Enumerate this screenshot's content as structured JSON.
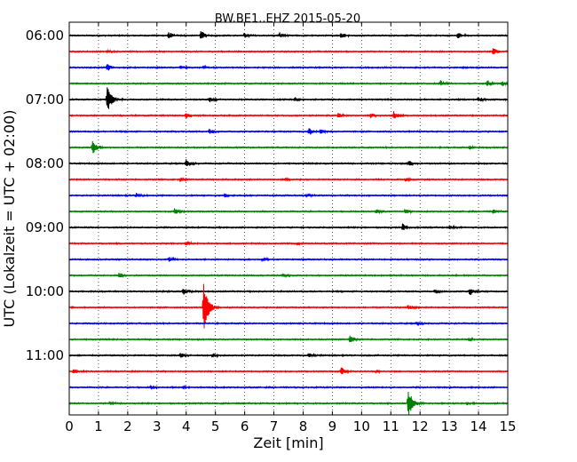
{
  "chart_data": {
    "type": "line",
    "title": "BW.BE1..EHZ 2015-05-20",
    "xlabel": "Zeit  [min]",
    "ylabel": "UTC (Lokalzeit = UTC + 02:00)",
    "xlim": [
      0,
      15
    ],
    "x_ticks": [
      "0",
      "1",
      "2",
      "3",
      "4",
      "5",
      "6",
      "7",
      "8",
      "9",
      "10",
      "11",
      "12",
      "13",
      "14",
      "15"
    ],
    "y_tick_labels": [
      "06:00",
      "07:00",
      "08:00",
      "09:00",
      "10:00",
      "11:00"
    ],
    "y_tick_trace_indices": [
      0,
      4,
      8,
      12,
      16,
      20
    ],
    "vertical_grid": "dotted",
    "trace_minutes": 15,
    "colors": [
      "#000000",
      "#ff0000",
      "#0000ff",
      "#008000"
    ],
    "traces": [
      {
        "start": "06:00",
        "color": "#000000",
        "events": [
          {
            "t": 3.4,
            "amp": 0.35
          },
          {
            "t": 4.5,
            "amp": 0.55
          },
          {
            "t": 6.0,
            "amp": 0.3
          },
          {
            "t": 7.2,
            "amp": 0.3
          },
          {
            "t": 9.3,
            "amp": 0.35
          },
          {
            "t": 13.3,
            "amp": 0.35
          }
        ]
      },
      {
        "start": "06:15",
        "color": "#ff0000",
        "events": [
          {
            "t": 1.3,
            "amp": 0.2
          },
          {
            "t": 14.5,
            "amp": 0.45
          }
        ]
      },
      {
        "start": "06:30",
        "color": "#0000ff",
        "events": [
          {
            "t": 1.3,
            "amp": 0.4
          },
          {
            "t": 3.8,
            "amp": 0.2
          },
          {
            "t": 4.6,
            "amp": 0.2
          }
        ]
      },
      {
        "start": "06:45",
        "color": "#008000",
        "events": [
          {
            "t": 12.7,
            "amp": 0.35
          },
          {
            "t": 14.3,
            "amp": 0.4
          },
          {
            "t": 14.8,
            "amp": 0.3
          }
        ]
      },
      {
        "start": "07:00",
        "color": "#000000",
        "events": [
          {
            "t": 1.3,
            "amp": 1.5
          },
          {
            "t": 4.8,
            "amp": 0.3
          },
          {
            "t": 7.7,
            "amp": 0.25
          },
          {
            "t": 14.0,
            "amp": 0.3
          }
        ]
      },
      {
        "start": "07:15",
        "color": "#ff0000",
        "events": [
          {
            "t": 4.0,
            "amp": 0.35
          },
          {
            "t": 9.2,
            "amp": 0.3
          },
          {
            "t": 10.3,
            "amp": 0.3
          },
          {
            "t": 11.1,
            "amp": 0.5
          }
        ]
      },
      {
        "start": "07:30",
        "color": "#0000ff",
        "events": [
          {
            "t": 4.8,
            "amp": 0.3
          },
          {
            "t": 8.2,
            "amp": 0.4
          },
          {
            "t": 8.6,
            "amp": 0.25
          }
        ]
      },
      {
        "start": "07:45",
        "color": "#008000",
        "events": [
          {
            "t": 0.8,
            "amp": 0.8
          },
          {
            "t": 13.7,
            "amp": 0.25
          }
        ]
      },
      {
        "start": "08:00",
        "color": "#000000",
        "events": [
          {
            "t": 4.0,
            "amp": 0.45
          },
          {
            "t": 11.6,
            "amp": 0.3
          }
        ]
      },
      {
        "start": "08:15",
        "color": "#ff0000",
        "events": [
          {
            "t": 3.8,
            "amp": 0.2
          },
          {
            "t": 11.5,
            "amp": 0.2
          },
          {
            "t": 7.4,
            "amp": 0.2
          }
        ]
      },
      {
        "start": "08:30",
        "color": "#0000ff",
        "events": [
          {
            "t": 2.3,
            "amp": 0.25
          },
          {
            "t": 5.3,
            "amp": 0.2
          },
          {
            "t": 8.1,
            "amp": 0.2
          }
        ]
      },
      {
        "start": "08:45",
        "color": "#008000",
        "events": [
          {
            "t": 3.6,
            "amp": 0.35
          },
          {
            "t": 10.5,
            "amp": 0.3
          },
          {
            "t": 11.5,
            "amp": 0.3
          },
          {
            "t": 14.5,
            "amp": 0.25
          }
        ]
      },
      {
        "start": "09:00",
        "color": "#000000",
        "events": [
          {
            "t": 11.4,
            "amp": 0.4
          },
          {
            "t": 13.0,
            "amp": 0.2
          }
        ]
      },
      {
        "start": "09:15",
        "color": "#ff0000",
        "events": [
          {
            "t": 4.0,
            "amp": 0.25
          },
          {
            "t": 7.8,
            "amp": 0.2
          }
        ]
      },
      {
        "start": "09:30",
        "color": "#0000ff",
        "events": [
          {
            "t": 3.4,
            "amp": 0.3
          },
          {
            "t": 6.6,
            "amp": 0.25
          }
        ]
      },
      {
        "start": "09:45",
        "color": "#008000",
        "events": [
          {
            "t": 1.7,
            "amp": 0.3
          },
          {
            "t": 7.3,
            "amp": 0.2
          }
        ]
      },
      {
        "start": "10:00",
        "color": "#000000",
        "events": [
          {
            "t": 3.9,
            "amp": 0.45
          },
          {
            "t": 12.5,
            "amp": 0.3
          },
          {
            "t": 13.7,
            "amp": 0.45
          }
        ]
      },
      {
        "start": "10:15",
        "color": "#ff0000",
        "events": [
          {
            "t": 4.6,
            "amp": 2.6
          },
          {
            "t": 11.6,
            "amp": 0.3
          }
        ]
      },
      {
        "start": "10:30",
        "color": "#0000ff",
        "events": [
          {
            "t": 11.9,
            "amp": 0.3
          }
        ]
      },
      {
        "start": "10:45",
        "color": "#008000",
        "events": [
          {
            "t": 9.6,
            "amp": 0.45
          },
          {
            "t": 13.7,
            "amp": 0.2
          }
        ]
      },
      {
        "start": "11:00",
        "color": "#000000",
        "events": [
          {
            "t": 3.8,
            "amp": 0.35
          },
          {
            "t": 4.9,
            "amp": 0.25
          },
          {
            "t": 8.2,
            "amp": 0.3
          }
        ]
      },
      {
        "start": "11:15",
        "color": "#ff0000",
        "events": [
          {
            "t": 0.15,
            "amp": 0.3
          },
          {
            "t": 9.3,
            "amp": 0.45
          },
          {
            "t": 10.5,
            "amp": 0.2
          }
        ]
      },
      {
        "start": "11:30",
        "color": "#0000ff",
        "events": [
          {
            "t": 2.8,
            "amp": 0.2
          },
          {
            "t": 3.9,
            "amp": 0.2
          }
        ]
      },
      {
        "start": "11:45",
        "color": "#008000",
        "events": [
          {
            "t": 11.6,
            "amp": 1.6
          },
          {
            "t": 1.4,
            "amp": 0.2
          },
          {
            "t": 13.6,
            "amp": 0.2
          }
        ]
      }
    ]
  }
}
